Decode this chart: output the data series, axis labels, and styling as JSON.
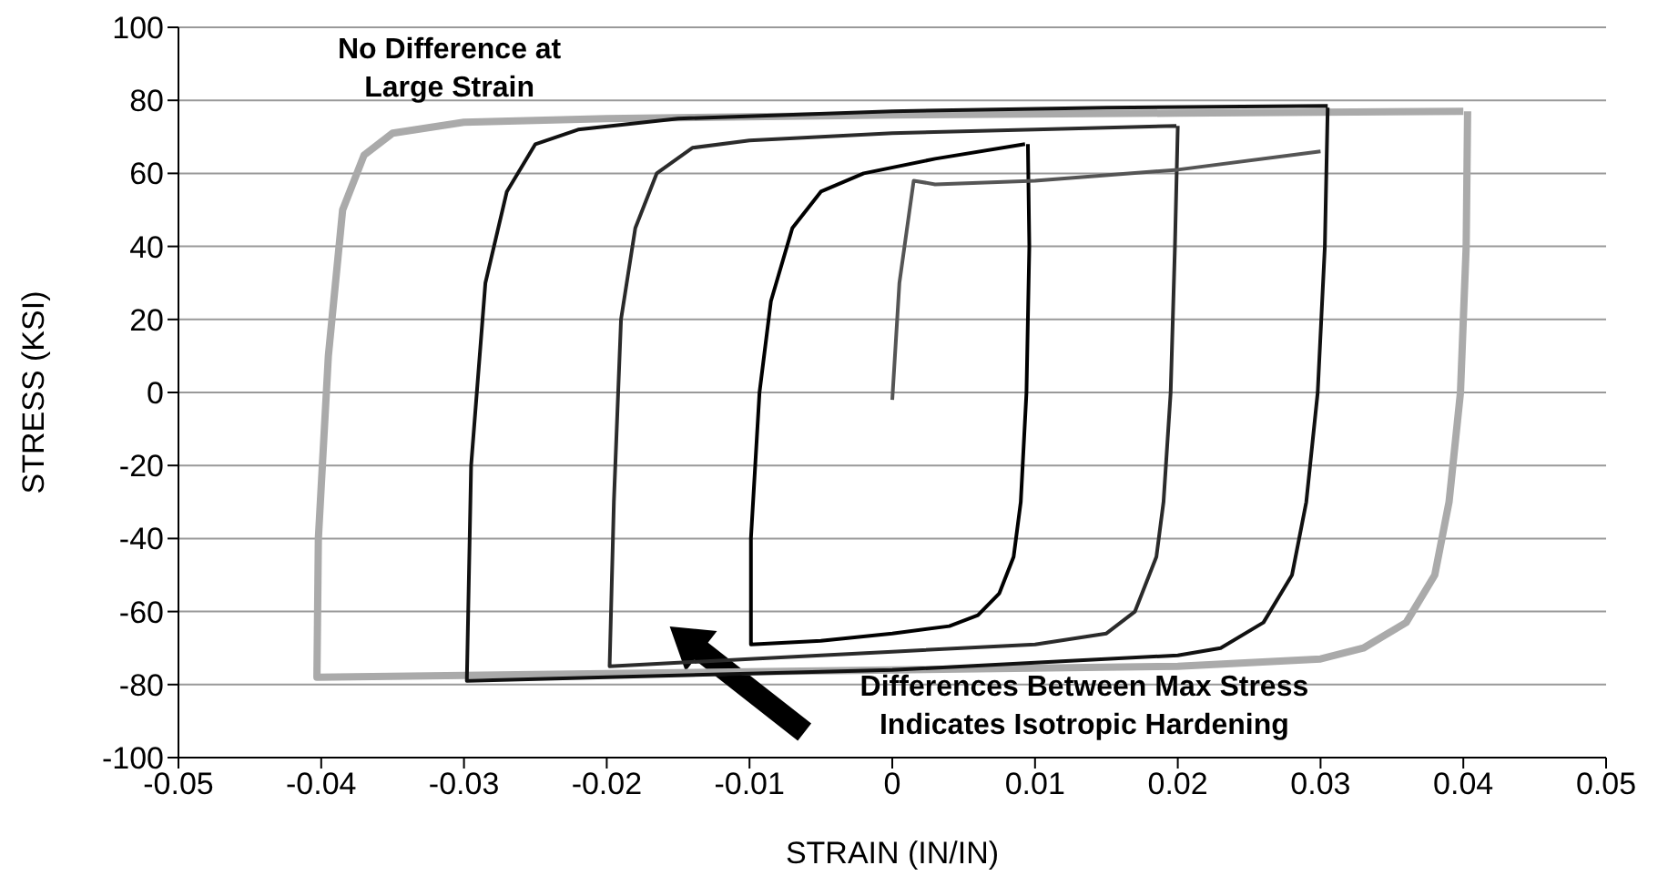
{
  "chart_data": {
    "type": "line",
    "xlabel": "STRAIN (IN/IN)",
    "ylabel": "STRESS (KSI)",
    "xlim": [
      -0.05,
      0.05
    ],
    "xticks": [
      -0.05,
      -0.04,
      -0.03,
      -0.02,
      -0.01,
      0,
      0.01,
      0.02,
      0.03,
      0.04,
      0.05
    ],
    "ylim": [
      -100,
      100
    ],
    "yticks": [
      -100,
      -80,
      -60,
      -40,
      -20,
      0,
      20,
      40,
      60,
      80,
      100
    ],
    "grid": "y",
    "marker": "none",
    "line_style": "solid",
    "annotations": [
      "No Difference at Large Strain",
      "Differences Between Max Stress Indicates Isotropic Hardening"
    ],
    "series": [
      {
        "color": "#aaaaaa",
        "x": [
          0.0403,
          0.0402,
          0.0398,
          0.039,
          0.038,
          0.036,
          0.033,
          0.03,
          0.02,
          0,
          -0.02,
          -0.0403,
          -0.0402,
          -0.0395,
          -0.0385,
          -0.037,
          -0.035,
          -0.03,
          -0.02,
          0,
          0.02,
          0.04
        ],
        "values": [
          77,
          40,
          0,
          -30,
          -50,
          -63,
          -70,
          -73,
          -75,
          -76,
          -77,
          -78,
          -40,
          10,
          50,
          65,
          71,
          74,
          75,
          76,
          76.5,
          77
        ]
      },
      {
        "color": "#111111",
        "x": [
          0.0305,
          0.0303,
          0.0298,
          0.029,
          0.028,
          0.026,
          0.023,
          0.02,
          0.01,
          0,
          -0.01,
          -0.02,
          -0.0298,
          -0.0295,
          -0.0285,
          -0.027,
          -0.025,
          -0.022,
          -0.015,
          0,
          0.015,
          0.0305
        ],
        "values": [
          78,
          40,
          0,
          -30,
          -50,
          -63,
          -70,
          -72,
          -74,
          -76,
          -77,
          -78,
          -79,
          -20,
          30,
          55,
          68,
          72,
          75,
          77,
          78,
          78.5
        ]
      },
      {
        "color": "#2b2b2b",
        "x": [
          0.02,
          0.0198,
          0.0195,
          0.019,
          0.0185,
          0.017,
          0.015,
          0.01,
          0,
          -0.01,
          -0.0198,
          -0.0195,
          -0.019,
          -0.018,
          -0.0165,
          -0.014,
          -0.01,
          0,
          0.01,
          0.0199
        ],
        "values": [
          73,
          40,
          0,
          -30,
          -45,
          -60,
          -66,
          -69,
          -71,
          -73,
          -75,
          -30,
          20,
          45,
          60,
          67,
          69,
          71,
          72,
          73
        ]
      },
      {
        "color": "#000000",
        "x": [
          0.0095,
          0.0096,
          0.0094,
          0.009,
          0.0085,
          0.0075,
          0.006,
          0.004,
          0,
          -0.005,
          -0.0099,
          -0.0099,
          -0.0093,
          -0.0085,
          -0.007,
          -0.005,
          -0.002,
          0.003,
          0.0093
        ],
        "values": [
          68,
          40,
          0,
          -30,
          -45,
          -55,
          -61,
          -64,
          -66,
          -68,
          -69,
          -40,
          0,
          25,
          45,
          55,
          60,
          64,
          68
        ]
      },
      {
        "color": "#555555",
        "x": [
          0,
          0.0005,
          0.0015,
          0.003,
          0.01,
          0.02,
          0.03
        ],
        "values": [
          -2,
          30,
          58,
          57,
          58,
          61,
          66
        ]
      }
    ]
  }
}
